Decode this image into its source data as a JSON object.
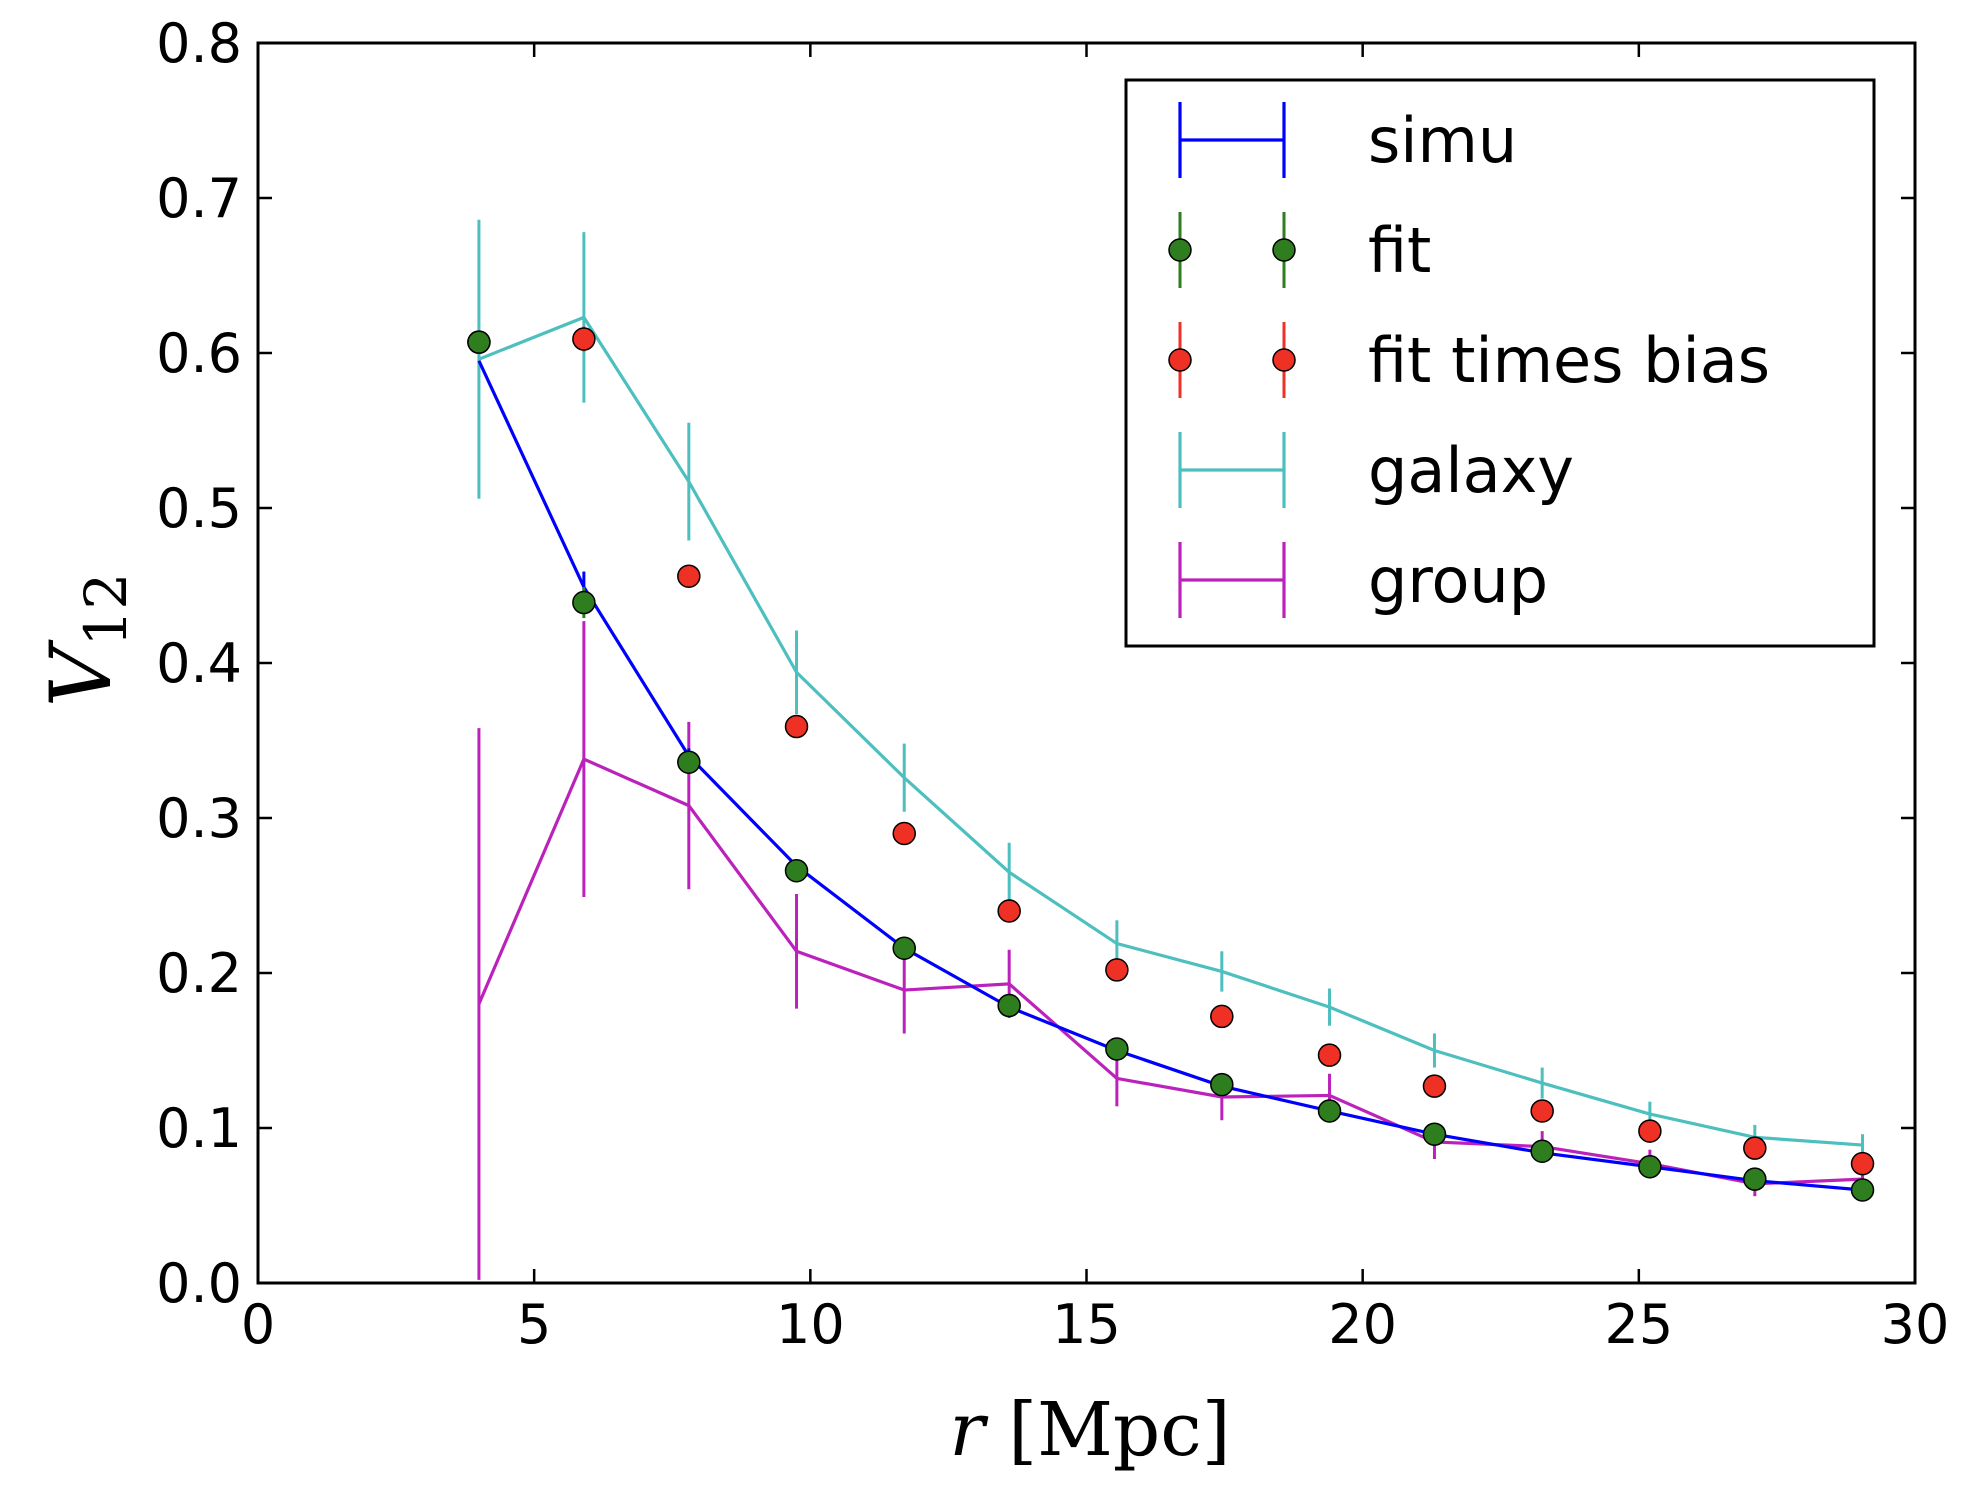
{
  "chart_data": {
    "type": "line",
    "title": "",
    "xlabel": "r [Mpc]",
    "ylabel": "V12",
    "xlim": [
      0,
      30
    ],
    "ylim": [
      0.0,
      0.8
    ],
    "x_ticks": [
      "0",
      "5",
      "10",
      "15",
      "20",
      "25",
      "30"
    ],
    "y_ticks": [
      "0.0",
      "0.1",
      "0.2",
      "0.3",
      "0.4",
      "0.5",
      "0.6",
      "0.7",
      "0.8"
    ],
    "grid": false,
    "legend_position": "top-right",
    "x": [
      4.0,
      5.9,
      7.8,
      9.75,
      11.7,
      13.6,
      15.55,
      17.45,
      19.4,
      21.3,
      23.25,
      25.2,
      27.1,
      29.05
    ],
    "series": [
      {
        "name": "simu",
        "kind": "line-errorbar",
        "color": "#0000ff",
        "values": [
          0.595,
          0.449,
          0.34,
          0.269,
          0.216,
          0.178,
          0.15,
          0.127,
          0.111,
          0.096,
          0.084,
          0.075,
          0.066,
          0.06
        ],
        "errors": [
          0.0,
          0.01,
          0.005,
          0.004,
          0.003,
          0.002,
          0.002,
          0.002,
          0.002,
          0.002,
          0.001,
          0.001,
          0.001,
          0.001
        ]
      },
      {
        "name": "fit",
        "kind": "markers",
        "color": "#2e7d1e",
        "values": [
          0.607,
          0.439,
          0.336,
          0.266,
          0.216,
          0.179,
          0.151,
          0.128,
          0.111,
          0.096,
          0.085,
          0.075,
          0.067,
          0.06
        ],
        "errors": [
          0.0,
          0.01,
          0.004,
          0.003,
          0.002,
          0.002,
          0.002,
          0.001,
          0.001,
          0.001,
          0.001,
          0.001,
          0.001,
          0.001
        ]
      },
      {
        "name": "fit times bias",
        "kind": "markers",
        "color": "#ee3124",
        "values": [
          0.607,
          0.609,
          0.456,
          0.359,
          0.29,
          0.24,
          0.202,
          0.172,
          0.147,
          0.127,
          0.111,
          0.098,
          0.087,
          0.077
        ],
        "errors": [
          0.0,
          0.008,
          0.006,
          0.004,
          0.003,
          0.002,
          0.002,
          0.002,
          0.001,
          0.001,
          0.001,
          0.001,
          0.001,
          0.001
        ]
      },
      {
        "name": "galaxy",
        "kind": "line-errorbar",
        "color": "#4dbfbf",
        "values": [
          0.596,
          0.623,
          0.517,
          0.394,
          0.326,
          0.265,
          0.219,
          0.201,
          0.178,
          0.15,
          0.129,
          0.109,
          0.094,
          0.089
        ],
        "errors": [
          0.09,
          0.055,
          0.038,
          0.027,
          0.022,
          0.019,
          0.015,
          0.013,
          0.012,
          0.011,
          0.01,
          0.008,
          0.008,
          0.007
        ]
      },
      {
        "name": "group",
        "kind": "line-errorbar",
        "color": "#bb22bb",
        "values": [
          0.18,
          0.338,
          0.308,
          0.214,
          0.189,
          0.193,
          0.132,
          0.12,
          0.121,
          0.091,
          0.088,
          0.077,
          0.064,
          0.067
        ],
        "errors": [
          0.178,
          0.089,
          0.054,
          0.037,
          0.028,
          0.022,
          0.018,
          0.015,
          0.014,
          0.011,
          0.01,
          0.009,
          0.008,
          0.007
        ]
      }
    ]
  }
}
